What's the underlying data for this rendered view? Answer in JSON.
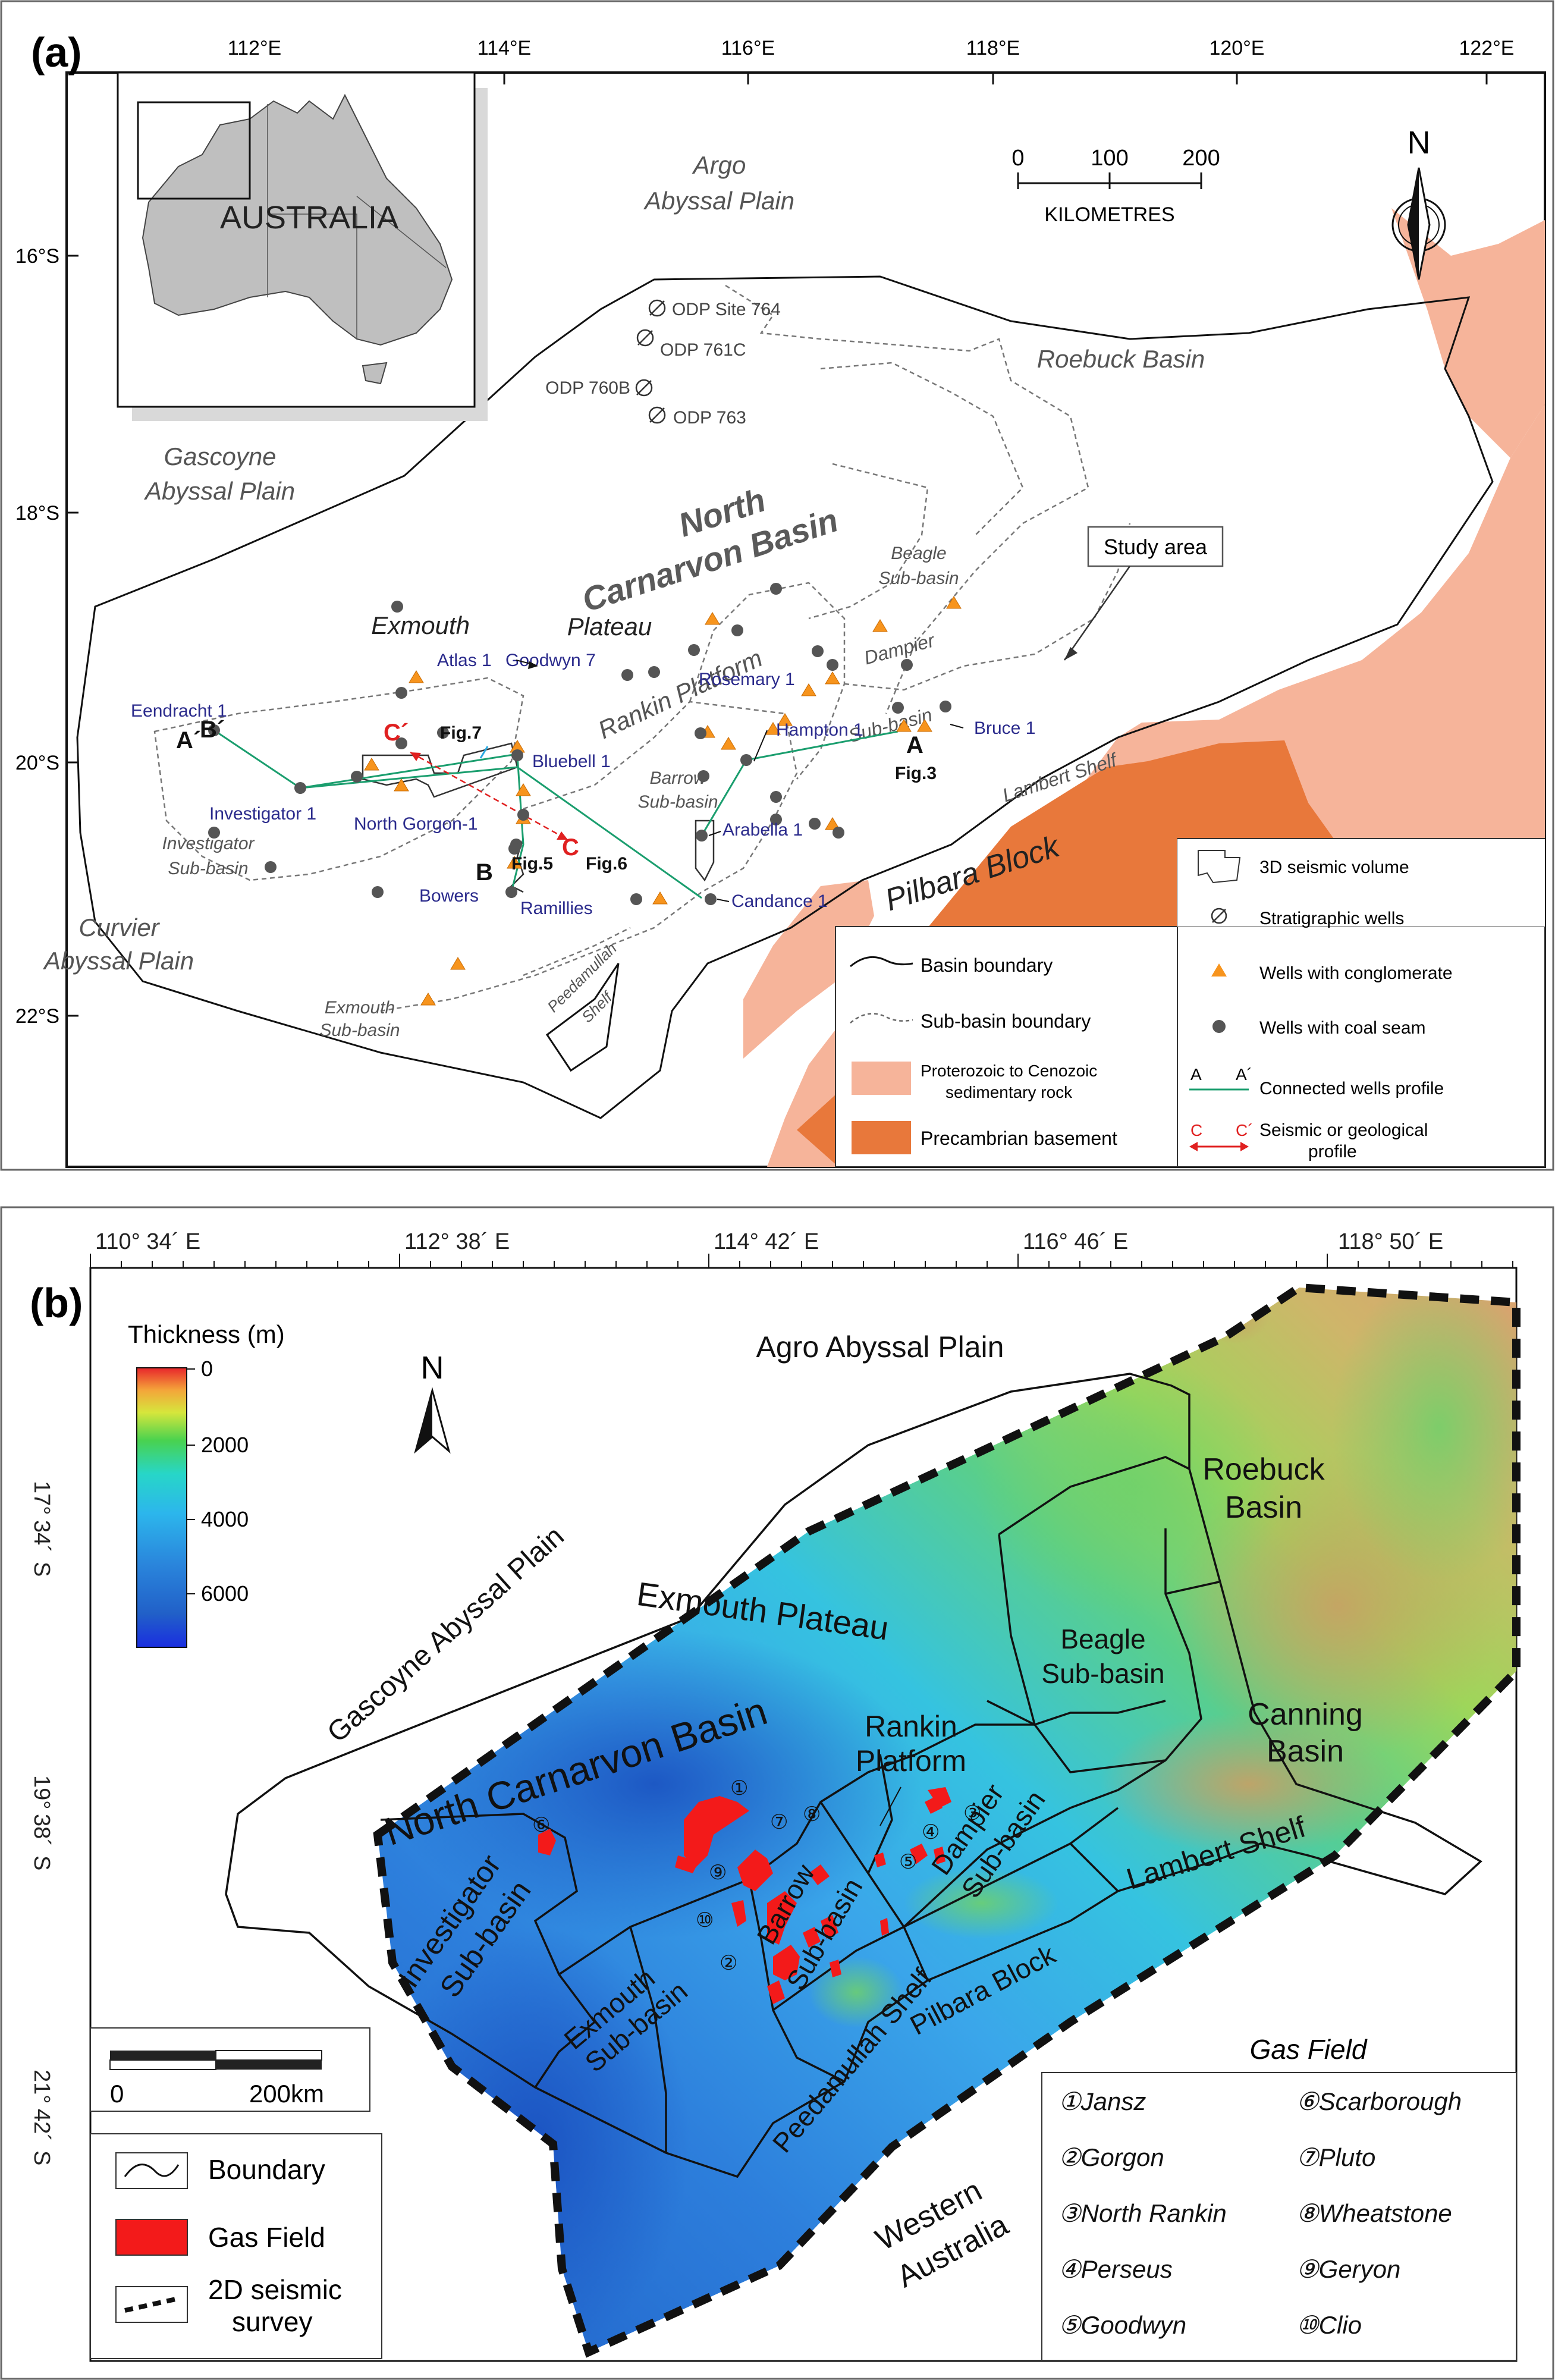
{
  "panel_a": {
    "label": "(a)",
    "lon_ticks": [
      "112°E",
      "114°E",
      "116°E",
      "118°E",
      "120°E",
      "122°E"
    ],
    "lat_ticks": [
      "16°S",
      "18°S",
      "20°S",
      "22°S"
    ],
    "inset_label": "AUSTRALIA",
    "scale": {
      "ticks": [
        "0",
        "100",
        "200"
      ],
      "unit": "KILOMETRES"
    },
    "north": "N",
    "regions": {
      "argo": [
        "Argo",
        "Abyssal Plain"
      ],
      "gascoyne": [
        "Gascoyne",
        "Abyssal Plain"
      ],
      "curvier": [
        "Curvier",
        "Abyssal Plain"
      ],
      "roebuck": "Roebuck Basin",
      "ncb": [
        "North",
        "Carnarvon Basin"
      ],
      "exmouth_plateau": [
        "Exmouth",
        "Plateau"
      ],
      "rankin": "Rankin Platform",
      "dampier": [
        "Dampier",
        "Sub-basin"
      ],
      "beagle": [
        "Beagle",
        "Sub-basin"
      ],
      "barrow": [
        "Barrow",
        "Sub-basin"
      ],
      "investigator": [
        "Investigator",
        "Sub-basin"
      ],
      "exmouth_sub": [
        "Exmouth",
        "Sub-basin"
      ],
      "peedamullah": [
        "Peedamullah",
        "Shelf"
      ],
      "lambert": "Lambert Shelf",
      "pilbara": "Pilbara Block",
      "study_area": "Study area"
    },
    "odp": [
      "ODP Site 764",
      "ODP 761C",
      "ODP 760B",
      "ODP 763"
    ],
    "wells": [
      "Eendracht 1",
      "Investigator 1",
      "Atlas 1",
      "Goodwyn 7",
      "Bluebell 1",
      "North Gorgon-1",
      "Bowers",
      "Ramillies",
      "Rosemary 1",
      "Hampton 1",
      "Arabella 1",
      "Candance 1",
      "Bruce 1"
    ],
    "profile_labels": {
      "A": "A",
      "A_prime": "A´",
      "B": "B",
      "B_prime": "B´",
      "C": "C",
      "C_prime": "C´"
    },
    "fig_labels": [
      "Fig.7",
      "Fig.5",
      "Fig.6",
      "Fig.3"
    ],
    "legend": [
      "Basin boundary",
      "Sub-basin boundary",
      "Proterozoic to Cenozoic",
      "sedimentary rock",
      "Precambrian basement",
      "3D seismic volume",
      "Stratigraphic wells",
      "Wells with conglomerate",
      "Wells with coal seam",
      "Connected wells profile",
      "Seismic or geological",
      "profile"
    ],
    "legend_symbols": {
      "aa": [
        "A",
        "A´"
      ],
      "cc": [
        "C",
        "C´"
      ]
    }
  },
  "panel_b": {
    "label": "(b)",
    "lon_ticks": [
      "110° 34´ E",
      "112° 38´ E",
      "114° 42´ E",
      "116° 46´ E",
      "118° 50´ E"
    ],
    "lat_ticks": [
      [
        "17°",
        "34´",
        "S"
      ],
      [
        "19°",
        "38´",
        "S"
      ],
      [
        "21°",
        "42´",
        "S"
      ]
    ],
    "colorbar": {
      "title": "Thickness (m)",
      "ticks": [
        "0",
        "2000",
        "4000",
        "6000"
      ]
    },
    "north": "N",
    "regions": {
      "agro": "Agro Abyssal Plain",
      "gascoyne": "Gascoyne Abyssal Plain",
      "exmouth_plateau": "Exmouth Plateau",
      "ncb": "North Carnarvon Basin",
      "rankin": [
        "Rankin",
        "Platform"
      ],
      "roebuck": [
        "Roebuck",
        "Basin"
      ],
      "beagle": [
        "Beagle",
        "Sub-basin"
      ],
      "canning": [
        "Canning",
        "Basin"
      ],
      "lambert": "Lambert Shelf",
      "investigator": [
        "Investigator",
        "Sub-basin"
      ],
      "exmouth_sub": [
        "Exmouth",
        "Sub-basin"
      ],
      "barrow": [
        "Barrow",
        "Sub-basin"
      ],
      "dampier": [
        "Dampier",
        "Sub-basin"
      ],
      "peedamullah": "Peedamullah Shelf",
      "pilbara": "Pilbara Block",
      "western_australia": [
        "Western",
        "Australia"
      ]
    },
    "scale": {
      "left": "0",
      "right": "200km"
    },
    "legend": [
      "Boundary",
      "Gas Field",
      [
        "2D seismic",
        "survey"
      ]
    ],
    "gas_fields_title": "Gas Field",
    "gas_fields": [
      "①Jansz",
      "②Gorgon",
      "③North Rankin",
      "④Perseus",
      "⑤Goodwyn",
      "⑥Scarborough",
      "⑦Pluto",
      "⑧Wheatstone",
      "⑨Geryon",
      "⑩Clio"
    ],
    "field_markers": [
      "①",
      "②",
      "③",
      "④",
      "⑤",
      "⑥",
      "⑦",
      "⑧",
      "⑨",
      "⑩"
    ]
  },
  "colors": {
    "sediment": "#f6b49a",
    "basement": "#e8783b",
    "conglomerate": "#f7941d",
    "coal": "#555555",
    "profile_green": "#1a9e6e",
    "profile_red": "#e02020",
    "well_label": "#2b2b8c",
    "gas_field": "#f31a1a"
  }
}
